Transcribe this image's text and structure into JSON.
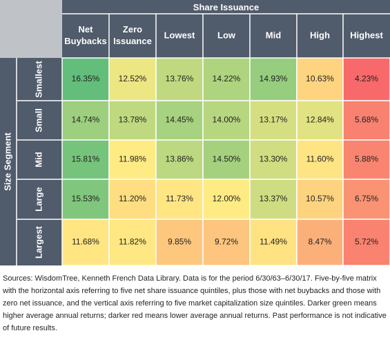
{
  "chart_data": {
    "type": "heatmap",
    "col_group_label": "Share Issuance",
    "row_group_label": "Size Segment",
    "columns": [
      [
        "Net",
        "Buybacks"
      ],
      [
        "Zero",
        "Issuance"
      ],
      [
        "Lowest"
      ],
      [
        "Low"
      ],
      [
        "Mid"
      ],
      [
        "High"
      ],
      [
        "Highest"
      ]
    ],
    "rows": [
      "Smallest",
      "Small",
      "Mid",
      "Large",
      "Largest"
    ],
    "values": [
      [
        16.35,
        12.52,
        13.76,
        14.22,
        14.93,
        10.63,
        4.23
      ],
      [
        14.74,
        13.78,
        14.45,
        14.0,
        13.17,
        12.84,
        5.68
      ],
      [
        15.81,
        11.98,
        13.86,
        14.5,
        13.3,
        11.6,
        5.88
      ],
      [
        15.53,
        11.2,
        11.73,
        12.0,
        13.37,
        10.57,
        6.75
      ],
      [
        11.68,
        11.82,
        9.85,
        9.72,
        11.49,
        8.47,
        5.72
      ]
    ],
    "value_suffix": "%",
    "color_scale": {
      "low": "#f8696b",
      "mid": "#ffeb84",
      "high": "#63be7b"
    },
    "header_color": "#505b6b",
    "corner_color": "#bfc3c8"
  },
  "footnote": "Sources: WisdomTree, Kenneth French Data Library. Data is for the period 6/30/63–6/30/17. Five-by-five matrix with the horizontal axis referring to five net share issuance quintiles, plus those with net buybacks and those with zero net issuance, and the vertical axis referring to five market capitalization size quintiles. Darker green means higher average annual returns; darker red means lower average annual returns. Past performance is not indicative of future results."
}
